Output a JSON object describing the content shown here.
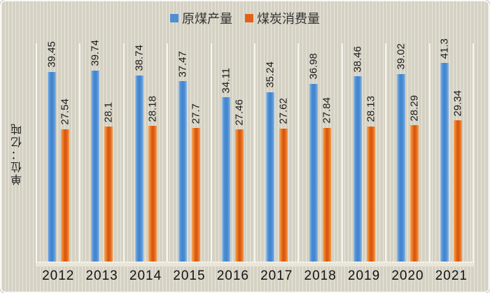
{
  "unit_label": "单位：亿吨",
  "legend": {
    "items": [
      {
        "label": "原煤产量",
        "color": "#4e8ed2"
      },
      {
        "label": "煤炭消费量",
        "color": "#e4601a"
      }
    ]
  },
  "chart_data": {
    "type": "bar",
    "title": "",
    "categories": [
      "2012",
      "2013",
      "2014",
      "2015",
      "2016",
      "2017",
      "2018",
      "2019",
      "2020",
      "2021"
    ],
    "series": [
      {
        "name": "原煤产量",
        "color": "#4e8ed2",
        "values": [
          39.45,
          39.74,
          38.74,
          37.47,
          34.11,
          35.24,
          36.98,
          38.46,
          39.02,
          41.3
        ]
      },
      {
        "name": "煤炭消费量",
        "color": "#e4601a",
        "values": [
          27.54,
          28.1,
          28.18,
          27.7,
          27.46,
          27.62,
          27.84,
          28.13,
          28.29,
          29.34
        ]
      }
    ],
    "xlabel": "",
    "ylabel": "单位：亿吨",
    "ylim": [
      0,
      45
    ],
    "grid": "vertical category separators, white",
    "legend_position": "top-center",
    "data_labels": "rotated 90° above each bar"
  }
}
